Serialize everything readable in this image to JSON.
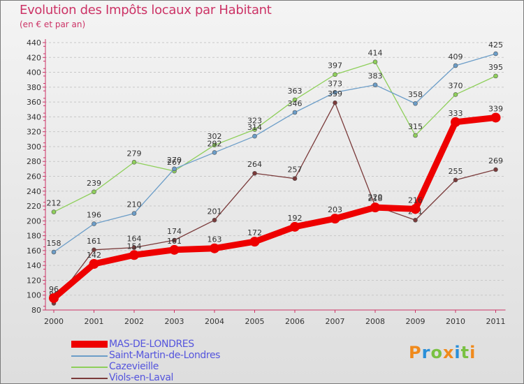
{
  "chart_data": {
    "type": "line",
    "title": "Evolution des Impôts locaux par Habitant",
    "subtitle": "(en € et par an)",
    "categories": [
      "2000",
      "2001",
      "2002",
      "2003",
      "2004",
      "2005",
      "2006",
      "2007",
      "2008",
      "2009",
      "2010",
      "2011"
    ],
    "ylim": [
      80,
      440
    ],
    "yticks": [
      80,
      100,
      120,
      140,
      160,
      180,
      200,
      220,
      240,
      260,
      280,
      300,
      320,
      340,
      360,
      380,
      400,
      420,
      440
    ],
    "grid": "horizontal dashed",
    "legend_position": "bottom-left",
    "series": [
      {
        "name": "Cazevieille",
        "color": "#8ecf5a",
        "values": [
          212,
          239,
          279,
          267,
          302,
          323,
          363,
          397,
          414,
          315,
          370,
          395
        ]
      },
      {
        "name": "Saint-Martin-de-Londres",
        "color": "#6b9dc8",
        "values": [
          158,
          196,
          210,
          270,
          292,
          314,
          346,
          373,
          383,
          358,
          409,
          425
        ]
      },
      {
        "name": "Viols-en-Laval",
        "color": "#7a3a3a",
        "values": [
          89,
          161,
          164,
          174,
          201,
          264,
          257,
          359,
          220,
          201,
          255,
          269
        ]
      },
      {
        "name": "MAS-DE-LONDRES",
        "color": "#ee0000",
        "values": [
          96,
          142,
          154,
          161,
          163,
          172,
          192,
          203,
          218,
          216,
          333,
          339
        ]
      }
    ]
  },
  "legend": {
    "items": [
      "MAS-DE-LONDRES",
      "Saint-Martin-de-Londres",
      "Cazevieille",
      "Viols-en-Laval"
    ]
  },
  "logo": {
    "letters": [
      "P",
      "r",
      "o",
      "x",
      "i",
      "t",
      "i"
    ],
    "colors": [
      "#f08a1c",
      "#2a8fd8",
      "#7ac143",
      "#f08a1c",
      "#2a8fd8",
      "#7ac143",
      "#f08a1c"
    ]
  }
}
